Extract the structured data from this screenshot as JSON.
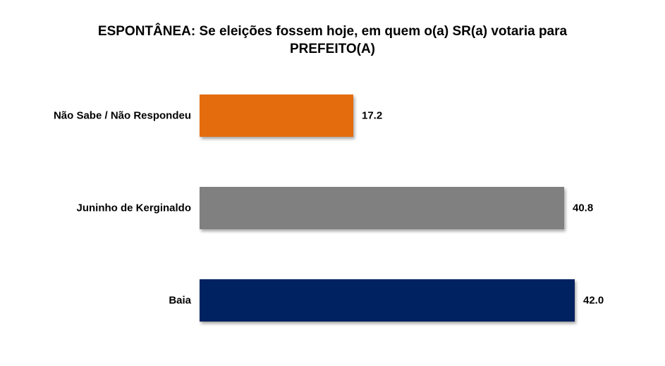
{
  "chart_data": {
    "type": "bar",
    "orientation": "horizontal",
    "title_line1": "ESPONTÂNEA: Se eleições fossem hoje, em quem o(a) SR(a) votaria para",
    "title_line2": "PREFEITO(A)",
    "xlabel": "",
    "ylabel": "",
    "grid": false,
    "legend": "none",
    "categories": [
      "Não Sabe / Não Respondeu",
      "Juninho de Kerginaldo",
      "Baia"
    ],
    "values": [
      17.2,
      40.8,
      42.0
    ],
    "value_labels": [
      "17.2",
      "40.8",
      "42.0"
    ],
    "colors": [
      "#E46C0A",
      "#808080",
      "#002060"
    ],
    "xlim": [
      0,
      42.0
    ]
  }
}
